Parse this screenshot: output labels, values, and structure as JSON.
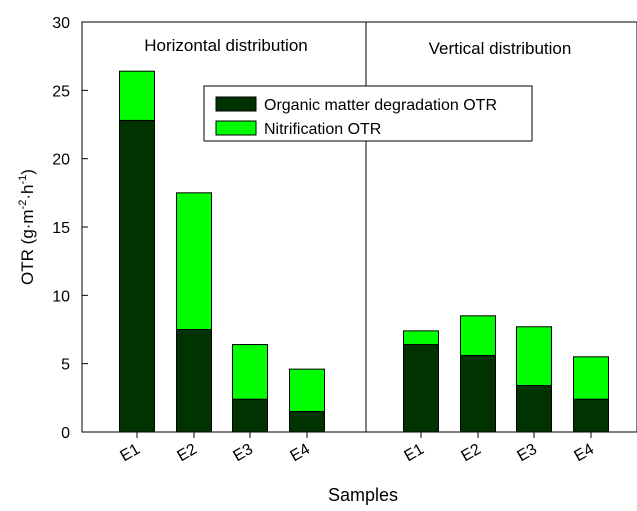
{
  "chart_data": {
    "type": "bar",
    "stacked": true,
    "xlabel": "Samples",
    "ylabel": {
      "main": "OTR (g·m",
      "sup1": "-2",
      "mid": "·h",
      "sup2": "-1",
      "end": ")"
    },
    "ylim": [
      0,
      30
    ],
    "yticks": [
      0,
      5,
      10,
      15,
      20,
      25,
      30
    ],
    "panels": [
      {
        "title": "Horizontal distribution",
        "categories": [
          "E1",
          "E2",
          "E3",
          "E4"
        ]
      },
      {
        "title": "Vertical distribution",
        "categories": [
          "E1",
          "E2",
          "E3",
          "E4"
        ]
      }
    ],
    "series": [
      {
        "name": "Organic matter degradation OTR",
        "color": "#003300",
        "values": [
          22.8,
          7.5,
          2.4,
          1.5,
          6.4,
          5.6,
          3.4,
          2.4
        ]
      },
      {
        "name": "Nitrification OTR",
        "color": "#00ff00",
        "values": [
          3.6,
          10.0,
          4.0,
          3.1,
          1.0,
          2.9,
          4.3,
          3.1
        ]
      }
    ],
    "legend_position": "top-center",
    "grid": false
  }
}
